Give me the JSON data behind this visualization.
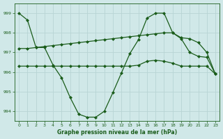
{
  "xlabel_label": "Graphe pression niveau de la mer (hPa)",
  "bg_color": "#d0e8e8",
  "grid_color": "#b8d4d4",
  "line_color": "#1a5c1a",
  "marker": "D",
  "marker_size": 2.0,
  "line_width": 0.9,
  "ylim": [
    993.5,
    999.5
  ],
  "xlim": [
    -0.5,
    23.5
  ],
  "yticks": [
    994,
    995,
    996,
    997,
    998,
    999
  ],
  "xticks": [
    0,
    1,
    2,
    3,
    4,
    5,
    6,
    7,
    8,
    9,
    10,
    11,
    12,
    13,
    14,
    15,
    16,
    17,
    18,
    19,
    20,
    21,
    22,
    23
  ],
  "line1": [
    999.0,
    998.65,
    997.25,
    997.25,
    996.35,
    995.7,
    994.7,
    993.85,
    993.7,
    993.7,
    994.0,
    994.95,
    995.95,
    996.95,
    997.65,
    998.75,
    999.0,
    999.0,
    998.0,
    997.7,
    997.0,
    996.8,
    996.75,
    995.9
  ],
  "line2": [
    997.2,
    997.2,
    997.25,
    997.3,
    997.35,
    997.4,
    997.45,
    997.5,
    997.55,
    997.6,
    997.65,
    997.7,
    997.75,
    997.8,
    997.85,
    997.9,
    997.95,
    998.0,
    998.0,
    997.75,
    997.7,
    997.5,
    997.0,
    995.9
  ],
  "line3": [
    996.3,
    996.3,
    996.3,
    996.3,
    996.3,
    996.3,
    996.3,
    996.3,
    996.3,
    996.3,
    996.3,
    996.3,
    996.3,
    996.3,
    996.35,
    996.55,
    996.6,
    996.55,
    996.45,
    996.3,
    996.3,
    996.3,
    996.3,
    995.9
  ]
}
